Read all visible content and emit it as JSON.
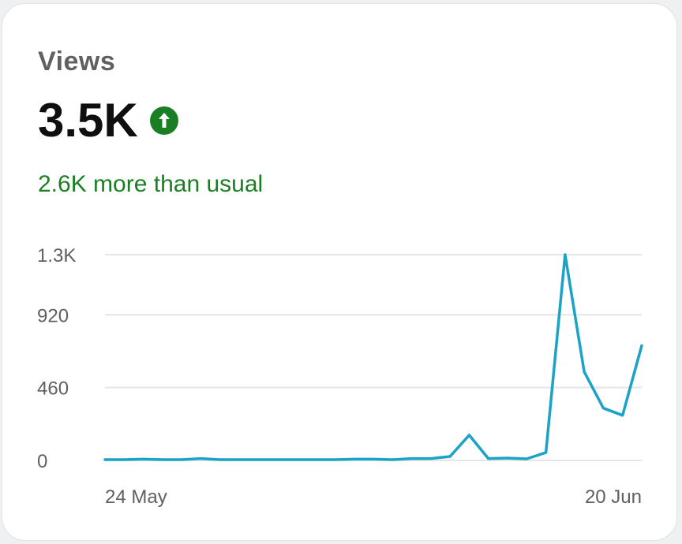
{
  "card": {
    "title": "Views",
    "value": "3.5K",
    "trend_icon": "arrow-up-circle-icon",
    "comparison": "2.6K more than usual"
  },
  "colors": {
    "line": "#1aa3c6",
    "positive": "#1a7f23",
    "grid": "#e5e5e5"
  },
  "chart_data": {
    "type": "line",
    "y_ticks": [
      "1.3K",
      "920",
      "460",
      "0"
    ],
    "y_tick_values": [
      1300,
      920,
      460,
      0
    ],
    "ylim": [
      0,
      1380
    ],
    "x_tick_labels": [
      "24 May",
      "20 Jun"
    ],
    "grid": true,
    "series": [
      {
        "values": [
          5,
          5,
          8,
          5,
          5,
          12,
          5,
          5,
          5,
          5,
          5,
          5,
          5,
          8,
          8,
          5,
          12,
          12,
          25,
          160,
          12,
          15,
          10,
          50,
          1370,
          560,
          330,
          285,
          725
        ]
      }
    ]
  }
}
